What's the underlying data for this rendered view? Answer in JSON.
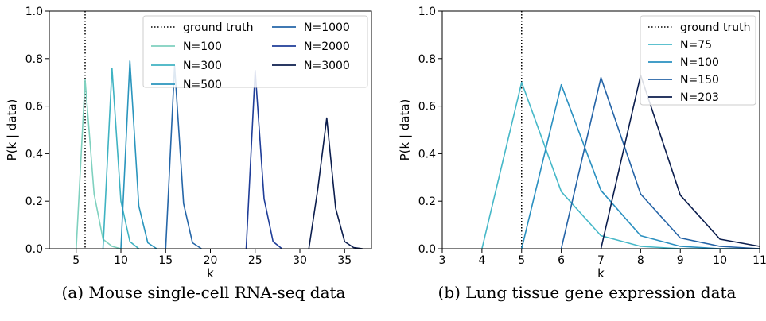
{
  "chart_data": [
    {
      "type": "line",
      "caption": "(a) Mouse single-cell RNA-seq data",
      "xlabel": "k",
      "ylabel": "P(k | data)",
      "xlim": [
        2,
        38
      ],
      "ylim": [
        0,
        1.0
      ],
      "xticks": [
        5,
        10,
        15,
        20,
        25,
        30,
        35
      ],
      "xtick_labels": [
        "5",
        "10",
        "15",
        "20",
        "25",
        "30",
        "35"
      ],
      "yticks": [
        0,
        0.2,
        0.4,
        0.6,
        0.8,
        1.0
      ],
      "ytick_labels": [
        "0.0",
        "0.2",
        "0.4",
        "0.6",
        "0.8",
        "1.0"
      ],
      "legend": {
        "placement": "top-right",
        "columns": 2
      },
      "ground_truth": {
        "name": "ground truth",
        "x": 6,
        "style": "dotted",
        "color": "#000000"
      },
      "series": [
        {
          "name": "N=100",
          "color": "#7fd1bf",
          "x": [
            5,
            6,
            7,
            8,
            9,
            10
          ],
          "y": [
            0,
            0.71,
            0.23,
            0.04,
            0.01,
            0
          ]
        },
        {
          "name": "N=300",
          "color": "#3fb3c2",
          "x": [
            8,
            9,
            10,
            11,
            12
          ],
          "y": [
            0,
            0.76,
            0.2,
            0.03,
            0
          ]
        },
        {
          "name": "N=500",
          "color": "#2a95bd",
          "x": [
            10,
            11,
            12,
            13,
            14
          ],
          "y": [
            0,
            0.79,
            0.18,
            0.025,
            0
          ]
        },
        {
          "name": "N=1000",
          "color": "#2566a8",
          "x": [
            15,
            16,
            17,
            18,
            19
          ],
          "y": [
            0,
            0.77,
            0.19,
            0.025,
            0
          ]
        },
        {
          "name": "N=2000",
          "color": "#1f3d98",
          "x": [
            24,
            25,
            26,
            27,
            28
          ],
          "y": [
            0,
            0.75,
            0.21,
            0.03,
            0
          ]
        },
        {
          "name": "N=3000",
          "color": "#0b1d4d",
          "x": [
            31,
            32,
            33,
            34,
            35,
            36,
            37
          ],
          "y": [
            0,
            0.25,
            0.55,
            0.17,
            0.03,
            0.005,
            0
          ]
        }
      ]
    },
    {
      "type": "line",
      "caption": "(b) Lung tissue gene expression data",
      "xlabel": "k",
      "ylabel": "P(k | data)",
      "xlim": [
        3,
        11
      ],
      "ylim": [
        0,
        1.0
      ],
      "xticks": [
        3,
        4,
        5,
        6,
        7,
        8,
        9,
        10,
        11
      ],
      "xtick_labels": [
        "3",
        "4",
        "5",
        "6",
        "7",
        "8",
        "9",
        "10",
        "11"
      ],
      "yticks": [
        0,
        0.2,
        0.4,
        0.6,
        0.8,
        1.0
      ],
      "ytick_labels": [
        "0.0",
        "0.2",
        "0.4",
        "0.6",
        "0.8",
        "1.0"
      ],
      "legend": {
        "placement": "top-right",
        "columns": 1
      },
      "ground_truth": {
        "name": "ground truth",
        "x": 5,
        "style": "dotted",
        "color": "#000000"
      },
      "series": [
        {
          "name": "N=75",
          "color": "#46b8c8",
          "x": [
            4,
            5,
            6,
            7,
            8,
            9,
            10,
            11
          ],
          "y": [
            0,
            0.7,
            0.24,
            0.055,
            0.01,
            0,
            0,
            0
          ]
        },
        {
          "name": "N=100",
          "color": "#2a90c0",
          "x": [
            5,
            6,
            7,
            8,
            9,
            10,
            11
          ],
          "y": [
            0,
            0.69,
            0.245,
            0.055,
            0.01,
            0,
            0
          ]
        },
        {
          "name": "N=150",
          "color": "#2463a6",
          "x": [
            6,
            7,
            8,
            9,
            10,
            11
          ],
          "y": [
            0,
            0.72,
            0.23,
            0.045,
            0.01,
            0
          ]
        },
        {
          "name": "N=203",
          "color": "#0b1d4d",
          "x": [
            7,
            8,
            9,
            10,
            11
          ],
          "y": [
            0,
            0.73,
            0.225,
            0.04,
            0.01
          ]
        }
      ]
    }
  ]
}
